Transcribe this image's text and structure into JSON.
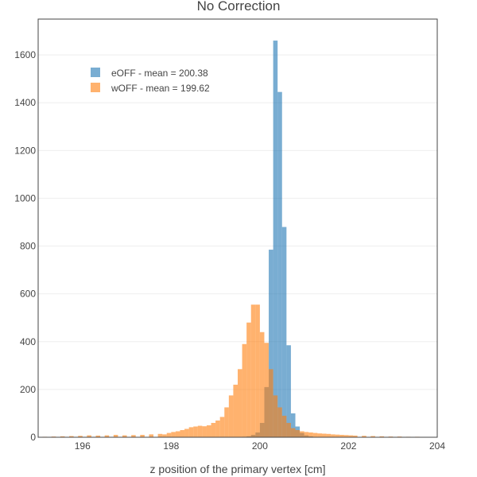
{
  "chart_data": {
    "type": "bar",
    "title": "No Correction",
    "xlabel": "z position of the primary vertex [cm]",
    "ylabel": "",
    "xlim": [
      195,
      204
    ],
    "ylim": [
      0,
      1750
    ],
    "x_ticks": [
      196,
      198,
      200,
      202,
      204
    ],
    "y_ticks": [
      0,
      200,
      400,
      600,
      800,
      1000,
      1200,
      1400,
      1600
    ],
    "bin_width": 0.1,
    "grid": true,
    "legend_position": "top-left",
    "series": [
      {
        "name": "eOFF - mean = 200.38",
        "color": "#1f77b4",
        "bins": [
          [
            199.6,
            2
          ],
          [
            199.7,
            4
          ],
          [
            199.8,
            10
          ],
          [
            199.9,
            20
          ],
          [
            200.0,
            60
          ],
          [
            200.1,
            210
          ],
          [
            200.2,
            785
          ],
          [
            200.3,
            1660
          ],
          [
            200.4,
            1445
          ],
          [
            200.5,
            880
          ],
          [
            200.6,
            385
          ],
          [
            200.7,
            100
          ],
          [
            200.8,
            45
          ],
          [
            200.9,
            18
          ],
          [
            201.0,
            8
          ],
          [
            201.1,
            4
          ]
        ]
      },
      {
        "name": "wOFF - mean = 199.62",
        "color": "#ff7f0e",
        "bins": [
          [
            195.1,
            2
          ],
          [
            195.3,
            3
          ],
          [
            195.5,
            4
          ],
          [
            195.7,
            5
          ],
          [
            195.9,
            6
          ],
          [
            196.1,
            8
          ],
          [
            196.3,
            7
          ],
          [
            196.5,
            8
          ],
          [
            196.7,
            10
          ],
          [
            196.9,
            8
          ],
          [
            197.1,
            9
          ],
          [
            197.3,
            10
          ],
          [
            197.5,
            12
          ],
          [
            197.7,
            14
          ],
          [
            197.8,
            12
          ],
          [
            197.9,
            18
          ],
          [
            198.0,
            22
          ],
          [
            198.1,
            25
          ],
          [
            198.2,
            30
          ],
          [
            198.3,
            35
          ],
          [
            198.4,
            42
          ],
          [
            198.5,
            45
          ],
          [
            198.6,
            48
          ],
          [
            198.7,
            46
          ],
          [
            198.8,
            50
          ],
          [
            198.9,
            60
          ],
          [
            199.0,
            70
          ],
          [
            199.1,
            85
          ],
          [
            199.2,
            125
          ],
          [
            199.3,
            175
          ],
          [
            199.4,
            220
          ],
          [
            199.5,
            285
          ],
          [
            199.6,
            390
          ],
          [
            199.7,
            480
          ],
          [
            199.8,
            555
          ],
          [
            199.9,
            555
          ],
          [
            200.0,
            440
          ],
          [
            200.1,
            395
          ],
          [
            200.2,
            285
          ],
          [
            200.3,
            175
          ],
          [
            200.4,
            125
          ],
          [
            200.5,
            90
          ],
          [
            200.6,
            60
          ],
          [
            200.7,
            38
          ],
          [
            200.8,
            30
          ],
          [
            200.9,
            25
          ],
          [
            201.0,
            22
          ],
          [
            201.1,
            20
          ],
          [
            201.2,
            18
          ],
          [
            201.3,
            16
          ],
          [
            201.4,
            15
          ],
          [
            201.5,
            14
          ],
          [
            201.6,
            12
          ],
          [
            201.7,
            11
          ],
          [
            201.8,
            10
          ],
          [
            201.9,
            9
          ],
          [
            202.0,
            8
          ],
          [
            202.1,
            7
          ],
          [
            202.3,
            6
          ],
          [
            202.5,
            5
          ],
          [
            202.7,
            4
          ],
          [
            202.9,
            3
          ],
          [
            203.1,
            3
          ],
          [
            203.3,
            2
          ],
          [
            203.5,
            2
          ]
        ]
      }
    ]
  }
}
